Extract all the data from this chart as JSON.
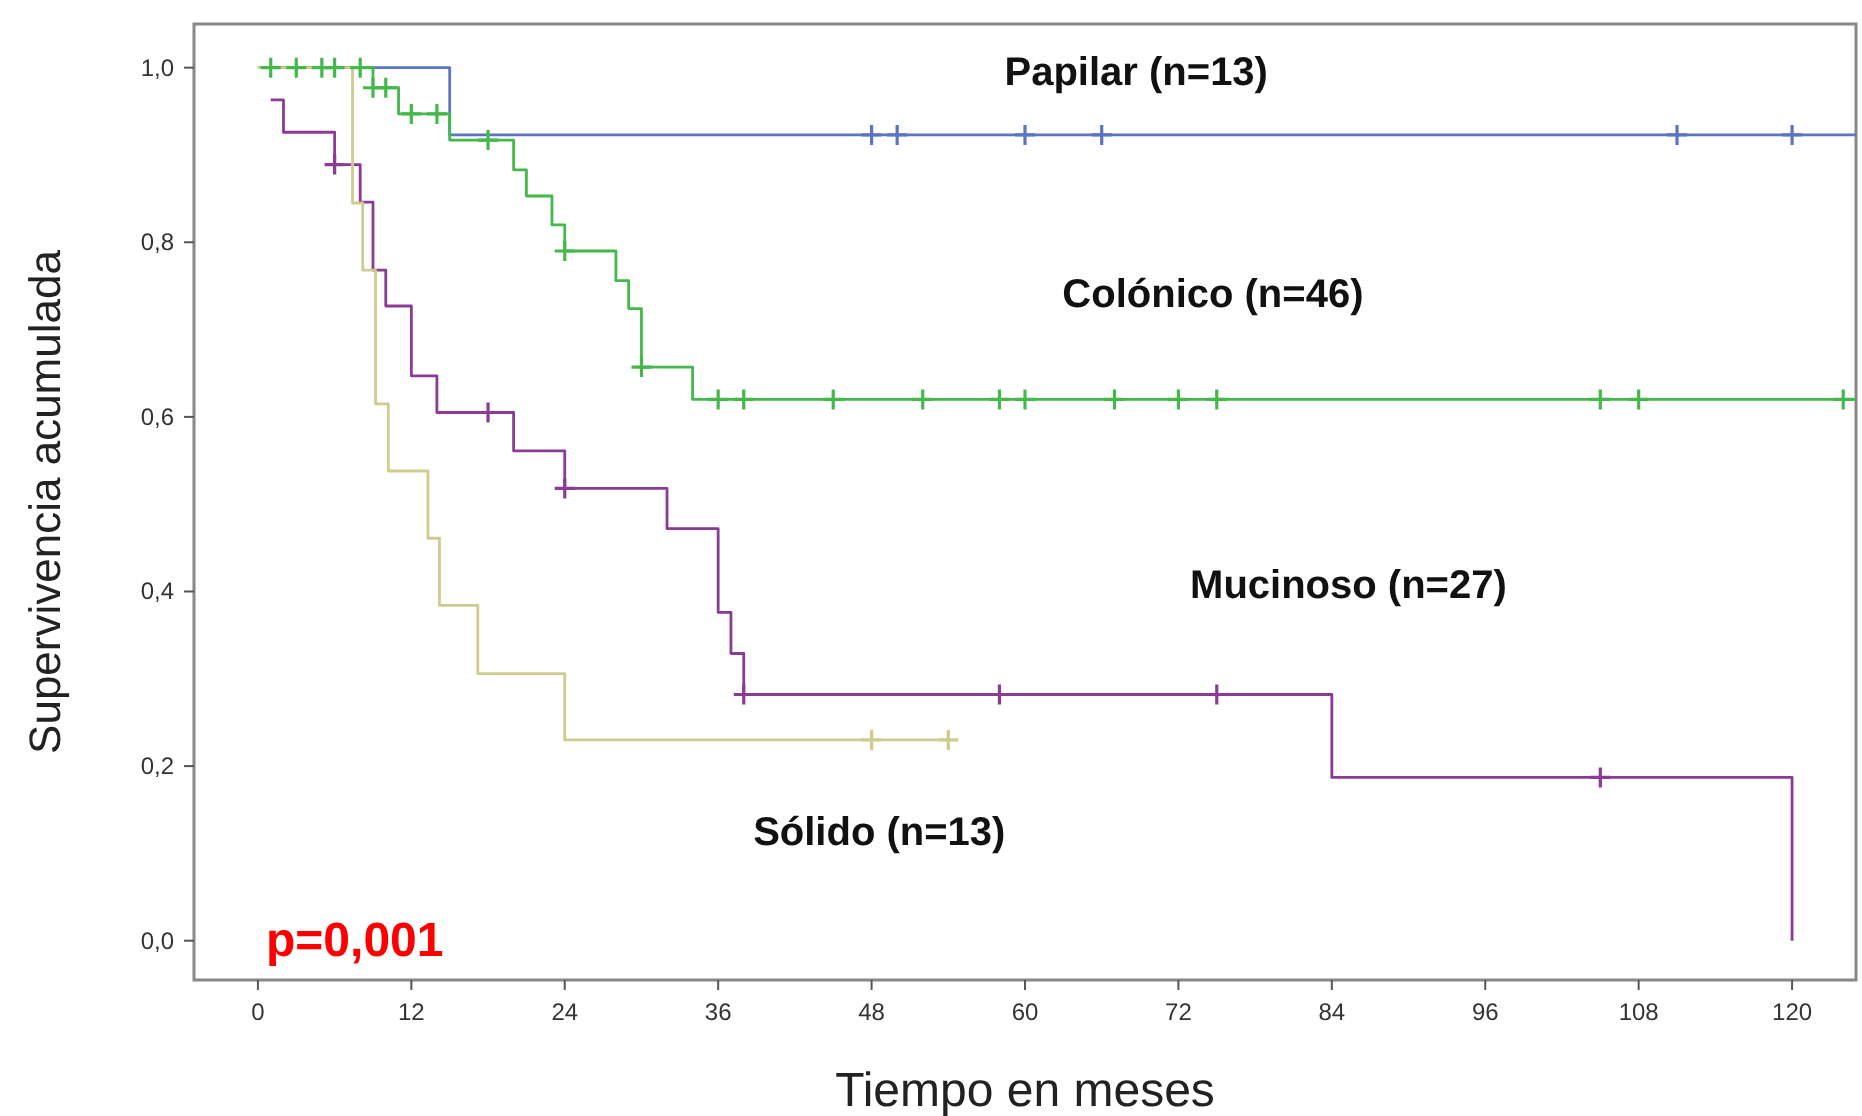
{
  "chart_data": {
    "type": "step",
    "xlabel": "Tiempo en meses",
    "ylabel": "Supervivencia acumulada",
    "xlim": [
      -5,
      125
    ],
    "ylim": [
      -0.045,
      1.05
    ],
    "xticks": [
      0,
      12,
      24,
      36,
      48,
      60,
      72,
      84,
      96,
      108,
      120
    ],
    "yticks": [
      {
        "value": 0,
        "label": "0,0"
      },
      {
        "value": 0.2,
        "label": "0,2"
      },
      {
        "value": 0.4,
        "label": "0,4"
      },
      {
        "value": 0.6,
        "label": "0,6"
      },
      {
        "value": 0.8,
        "label": "0,8"
      },
      {
        "value": 1,
        "label": "1,0"
      }
    ],
    "grid": false,
    "marker": "none",
    "line_style": "solid",
    "annotations": [
      "p=0,001"
    ],
    "series": [
      {
        "name": "Papilar (n=13)",
        "color": "#5b74c4",
        "x": [
          0,
          15,
          125
        ],
        "values": [
          1,
          0.923,
          0.923
        ]
      },
      {
        "name": "Colónico (n=46)",
        "color": "#44b84a",
        "x": [
          0,
          9,
          11,
          15,
          20,
          21,
          23,
          24,
          28,
          29,
          30,
          34,
          125
        ],
        "values": [
          1,
          0.977,
          0.947,
          0.917,
          0.883,
          0.853,
          0.82,
          0.79,
          0.756,
          0.724,
          0.657,
          0.62,
          0.62
        ]
      },
      {
        "name": "Mucinoso (n=27)",
        "color": "#8b3a96",
        "x": [
          1,
          2,
          6,
          8,
          9,
          10,
          12,
          14,
          20,
          24,
          32,
          36,
          37,
          38,
          84,
          120
        ],
        "values": [
          0.963,
          0.926,
          0.889,
          0.846,
          0.768,
          0.727,
          0.647,
          0.605,
          0.561,
          0.518,
          0.472,
          0.376,
          0.329,
          0.282,
          0.187,
          0
        ]
      },
      {
        "name": "Sólido (n=13)",
        "color": "#cfcb8f",
        "x": [
          0,
          7.4,
          8.2,
          9.2,
          10.2,
          13.3,
          14.2,
          17.2,
          24,
          54
        ],
        "values": [
          1,
          0.845,
          0.768,
          0.615,
          0.538,
          0.461,
          0.384,
          0.306,
          0.23,
          0.23
        ]
      },
      {
        "type": "scatter",
        "marker": "cross",
        "color": "#5b74c4",
        "x": [
          48,
          50,
          60,
          66,
          111,
          120
        ],
        "values": [
          0.923,
          0.923,
          0.923,
          0.923,
          0.923,
          0.923
        ]
      },
      {
        "type": "scatter",
        "marker": "cross",
        "color": "#44b84a",
        "x": [
          1,
          3,
          5,
          6,
          8,
          9,
          10,
          12,
          14,
          18,
          24,
          30,
          36,
          38,
          45,
          52,
          58,
          60,
          67,
          72,
          75,
          105,
          108,
          124
        ],
        "values": [
          1,
          1,
          1,
          1,
          1,
          0.977,
          0.977,
          0.947,
          0.947,
          0.917,
          0.79,
          0.657,
          0.62,
          0.62,
          0.62,
          0.62,
          0.62,
          0.62,
          0.62,
          0.62,
          0.62,
          0.62,
          0.62,
          0.62
        ]
      },
      {
        "type": "scatter",
        "marker": "cross",
        "color": "#8b3a96",
        "x": [
          6,
          18,
          24,
          38,
          58,
          75,
          105
        ],
        "values": [
          0.889,
          0.605,
          0.518,
          0.282,
          0.282,
          0.282,
          0.187
        ]
      },
      {
        "type": "scatter",
        "marker": "cross",
        "color": "#cfcb8f",
        "x": [
          48,
          54
        ],
        "values": [
          0.23,
          0.23
        ]
      }
    ]
  }
}
